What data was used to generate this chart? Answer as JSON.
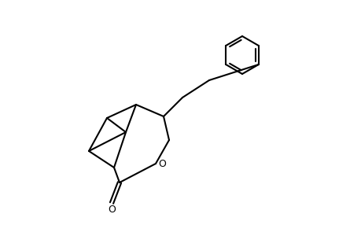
{
  "background_color": "#ffffff",
  "line_color": "#000000",
  "line_width": 1.5,
  "figsize": [
    4.6,
    3.0
  ],
  "dpi": 100
}
